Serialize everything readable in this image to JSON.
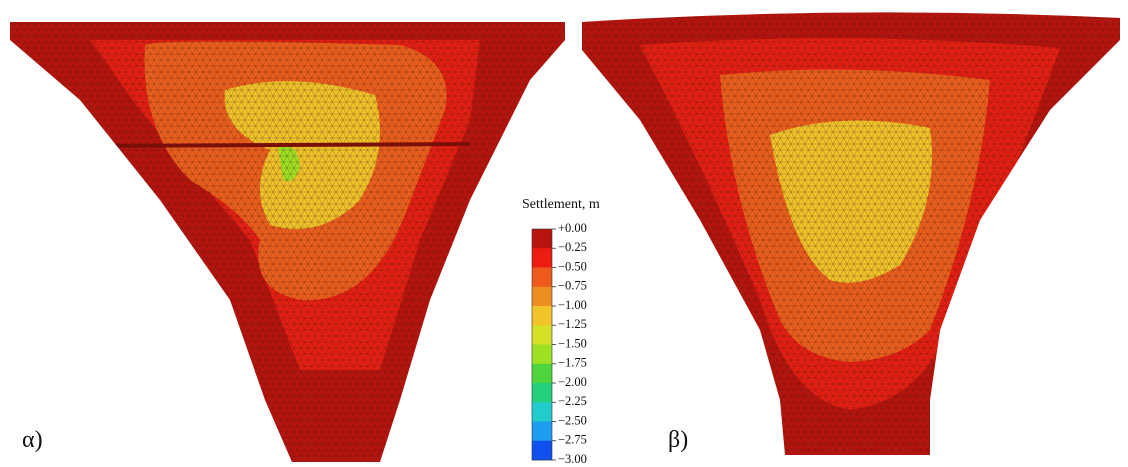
{
  "legend": {
    "title": "Settlement, m",
    "labels": [
      "+0.00",
      "−0.25",
      "−0.50",
      "−0.75",
      "−1.00",
      "−1.25",
      "−1.50",
      "−1.75",
      "−2.00",
      "−2.25",
      "−2.50",
      "−2.75",
      "−3.00"
    ],
    "colors": [
      "#b8140e",
      "#ec1c10",
      "#ee5a1c",
      "#ee8e22",
      "#f2c42a",
      "#d6e024",
      "#9ee024",
      "#4ed43c",
      "#24d07c",
      "#22cccc",
      "#1e9cee",
      "#1050ee"
    ]
  },
  "panels": [
    {
      "label": "α)"
    },
    {
      "label": "β)"
    }
  ]
}
